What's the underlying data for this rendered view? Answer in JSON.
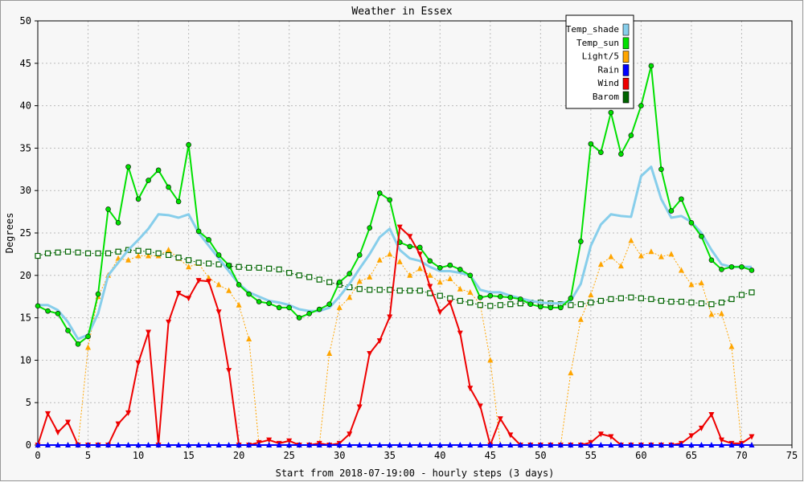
{
  "chart_data": {
    "type": "line",
    "title": "Weather in Essex",
    "xlabel": "Start from 2018-07-19:00 - hourly steps (3 days)",
    "ylabel": "Degrees",
    "xlim": [
      0,
      75
    ],
    "ylim": [
      0,
      50
    ],
    "x_ticks": [
      0,
      5,
      10,
      15,
      20,
      25,
      30,
      35,
      40,
      45,
      50,
      55,
      60,
      65,
      70,
      75
    ],
    "y_ticks": [
      0,
      5,
      10,
      15,
      20,
      25,
      30,
      35,
      40,
      45,
      50
    ],
    "grid": true,
    "legend_position": "top-right",
    "x": [
      0,
      1,
      2,
      3,
      4,
      5,
      6,
      7,
      8,
      9,
      10,
      11,
      12,
      13,
      14,
      15,
      16,
      17,
      18,
      19,
      20,
      21,
      22,
      23,
      24,
      25,
      26,
      27,
      28,
      29,
      30,
      31,
      32,
      33,
      34,
      35,
      36,
      37,
      38,
      39,
      40,
      41,
      42,
      43,
      44,
      45,
      46,
      47,
      48,
      49,
      50,
      51,
      52,
      53,
      54,
      55,
      56,
      57,
      58,
      59,
      60,
      61,
      62,
      63,
      64,
      65,
      66,
      67,
      68,
      69,
      70,
      71
    ],
    "series": [
      {
        "name": "Temp_shade",
        "color": "#87ceeb",
        "marker": "none",
        "values": [
          16.5,
          16.5,
          15.9,
          14.5,
          12.5,
          13.0,
          15.5,
          20.0,
          21.5,
          23.0,
          24.2,
          25.5,
          27.2,
          27.1,
          26.8,
          27.2,
          25.0,
          23.5,
          22.0,
          20.5,
          19.0,
          18.0,
          17.5,
          17.0,
          16.8,
          16.5,
          16.0,
          15.8,
          15.8,
          16.2,
          17.5,
          19.0,
          20.8,
          22.5,
          24.5,
          25.5,
          23.0,
          22.0,
          21.7,
          21.0,
          20.5,
          20.5,
          20.3,
          20.0,
          18.3,
          18.0,
          18.0,
          17.6,
          17.3,
          17.0,
          16.8,
          16.7,
          16.7,
          17.0,
          19.0,
          23.5,
          26.0,
          27.2,
          27.0,
          26.9,
          31.7,
          32.8,
          29.0,
          26.8,
          27.0,
          26.3,
          25.0,
          23.0,
          21.3,
          21.0,
          21.0,
          21.0
        ]
      },
      {
        "name": "Temp_sun",
        "color": "#00e000",
        "marker": "circle",
        "values": [
          16.4,
          15.8,
          15.5,
          13.5,
          11.9,
          12.8,
          17.8,
          27.8,
          26.2,
          32.8,
          29.0,
          31.2,
          32.4,
          30.4,
          28.7,
          35.4,
          25.2,
          24.2,
          22.4,
          21.2,
          18.9,
          17.8,
          16.9,
          16.7,
          16.2,
          16.2,
          15.0,
          15.5,
          16.0,
          16.6,
          19.2,
          20.2,
          22.4,
          25.6,
          29.7,
          28.9,
          23.9,
          23.4,
          23.3,
          21.7,
          20.9,
          21.2,
          20.7,
          20.0,
          17.4,
          17.6,
          17.5,
          17.4,
          17.2,
          16.6,
          16.3,
          16.2,
          16.2,
          17.3,
          24.0,
          35.5,
          34.5,
          39.2,
          34.3,
          36.5,
          40.0,
          44.7,
          32.5,
          27.6,
          29.0,
          26.2,
          24.6,
          21.8,
          20.7,
          21.0,
          21.0,
          20.6
        ]
      },
      {
        "name": "Light/5",
        "color": "#ffa500",
        "marker": "triangle-up",
        "values": [
          0,
          0,
          0,
          0,
          0,
          11.5,
          17.5,
          20.0,
          22.0,
          21.8,
          22.3,
          22.3,
          22.3,
          23.0,
          22.0,
          21.0,
          21.4,
          19.7,
          18.9,
          18.2,
          16.5,
          12.5,
          0,
          0,
          0,
          0,
          0,
          0,
          0,
          10.8,
          16.2,
          17.4,
          19.3,
          19.8,
          21.8,
          22.5,
          21.6,
          20.0,
          20.8,
          20.0,
          19.2,
          19.6,
          18.4,
          18.0,
          16.6,
          10.0,
          0,
          0,
          0,
          0,
          0,
          0,
          0,
          8.5,
          14.8,
          17.7,
          21.3,
          22.2,
          21.1,
          24.1,
          22.3,
          22.8,
          22.2,
          22.5,
          20.6,
          18.9,
          19.1,
          15.4,
          15.5,
          11.6,
          0,
          0
        ]
      },
      {
        "name": "Rain",
        "color": "#0000ff",
        "marker": "triangle-up",
        "values": [
          0,
          0,
          0,
          0,
          0,
          0,
          0,
          0,
          0,
          0,
          0,
          0,
          0,
          0,
          0,
          0,
          0,
          0,
          0,
          0,
          0,
          0,
          0,
          0,
          0,
          0,
          0,
          0,
          0,
          0,
          0,
          0,
          0,
          0,
          0,
          0,
          0,
          0,
          0,
          0,
          0,
          0,
          0,
          0,
          0,
          0,
          0,
          0,
          0,
          0,
          0,
          0,
          0,
          0,
          0,
          0,
          0,
          0,
          0,
          0,
          0,
          0,
          0,
          0,
          0,
          0,
          0,
          0,
          0,
          0,
          0,
          0
        ]
      },
      {
        "name": "Wind",
        "color": "#ee0000",
        "marker": "triangle-down",
        "values": [
          0,
          3.7,
          1.5,
          2.7,
          0,
          0,
          0,
          0,
          2.5,
          3.8,
          9.7,
          13.3,
          0,
          14.5,
          17.9,
          17.3,
          19.4,
          19.3,
          15.7,
          8.8,
          0,
          0,
          0.3,
          0.6,
          0.2,
          0.5,
          0,
          0,
          0.2,
          0,
          0.2,
          1.3,
          4.5,
          10.8,
          12.3,
          15.1,
          25.7,
          24.6,
          22.5,
          18.7,
          15.7,
          16.8,
          13.2,
          6.7,
          4.6,
          0,
          3.1,
          1.2,
          0,
          0,
          0,
          0,
          0,
          0,
          0,
          0.3,
          1.3,
          1.0,
          0,
          0,
          0,
          0,
          0,
          0,
          0.2,
          1.1,
          2.0,
          3.6,
          0.6,
          0.2,
          0.2,
          1.0
        ]
      },
      {
        "name": "Barom",
        "color": "#006400",
        "marker": "square",
        "values": [
          22.3,
          22.6,
          22.7,
          22.8,
          22.7,
          22.6,
          22.6,
          22.6,
          22.8,
          23.0,
          22.9,
          22.8,
          22.6,
          22.4,
          22.1,
          21.8,
          21.5,
          21.4,
          21.3,
          21.1,
          21.0,
          20.9,
          20.9,
          20.8,
          20.7,
          20.3,
          20.0,
          19.8,
          19.5,
          19.2,
          18.9,
          18.6,
          18.4,
          18.3,
          18.3,
          18.3,
          18.2,
          18.2,
          18.2,
          17.9,
          17.6,
          17.3,
          17.0,
          16.8,
          16.5,
          16.4,
          16.5,
          16.6,
          16.7,
          16.8,
          16.8,
          16.7,
          16.6,
          16.5,
          16.6,
          16.8,
          17.0,
          17.2,
          17.3,
          17.4,
          17.3,
          17.2,
          17.0,
          16.9,
          16.9,
          16.8,
          16.7,
          16.6,
          16.8,
          17.2,
          17.7,
          18.0
        ]
      }
    ]
  }
}
